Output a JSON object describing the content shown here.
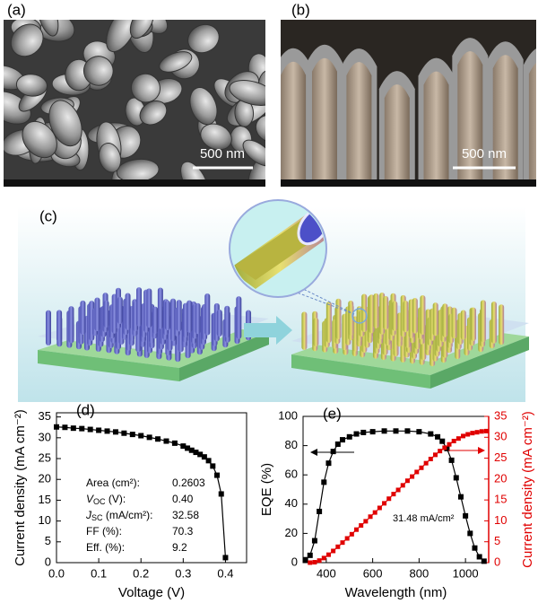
{
  "panels": [
    {
      "label": "(a)",
      "scale_bar": "500 nm"
    },
    {
      "label": "(b)",
      "scale_bar": "500 nm"
    },
    {
      "label": "(c)"
    }
  ],
  "chart_data": [
    {
      "type": "line",
      "panel_label": "(d)",
      "xlabel": "Voltage (V)",
      "ylabel": "Current density (mA cm⁻²)",
      "xlim": [
        0,
        0.45
      ],
      "xticks": [
        {
          "value": 0,
          "label": "0.0"
        },
        0.1,
        0.2,
        0.3,
        0.4
      ],
      "ylim": [
        0,
        36
      ],
      "yticks": [
        0,
        5,
        10,
        15,
        20,
        25,
        30,
        35
      ],
      "series": [
        {
          "color": "#000000",
          "marker": "square",
          "x": [
            0,
            0.02,
            0.04,
            0.06,
            0.08,
            0.1,
            0.12,
            0.14,
            0.16,
            0.18,
            0.2,
            0.22,
            0.24,
            0.26,
            0.28,
            0.3,
            0.31,
            0.32,
            0.33,
            0.34,
            0.35,
            0.36,
            0.37,
            0.38,
            0.39,
            0.4
          ],
          "values": [
            32.6,
            32.5,
            32.3,
            32.2,
            32.0,
            31.8,
            31.6,
            31.4,
            31.1,
            30.8,
            30.5,
            30.1,
            29.7,
            29.2,
            28.7,
            28.0,
            27.5,
            27.0,
            26.5,
            26.0,
            25.4,
            24.5,
            23.2,
            21.0,
            16.5,
            1.2
          ]
        }
      ],
      "table": [
        {
          "label": "Area (cm²):",
          "value": "0.2603"
        },
        {
          "symbol": "V",
          "subscript": "OC",
          "label": " (V):",
          "value": "0.40"
        },
        {
          "symbol": "J",
          "subscript": "SC",
          "label": " (mA/cm²):",
          "value": "32.58"
        },
        {
          "label": "FF (%):",
          "value": "70.3"
        },
        {
          "label": "Eff. (%):",
          "value": "9.2"
        }
      ]
    },
    {
      "type": "line",
      "panel_label": "(e)",
      "xlabel": "Wavelength (nm)",
      "ylabel": "EQE (%)",
      "y2label": "Current density (mA cm⁻²)",
      "annotation": "31.48 mA/cm²",
      "xlim": [
        300,
        1100
      ],
      "xticks": [
        400,
        600,
        800,
        1000
      ],
      "ylim": [
        0,
        100
      ],
      "yticks": [
        0,
        20,
        40,
        60,
        80,
        100
      ],
      "y2lim": [
        0,
        35
      ],
      "y2ticks": [
        0,
        5,
        10,
        15,
        20,
        25,
        30,
        35
      ],
      "y2color": "#e00000",
      "series": [
        {
          "color": "#000000",
          "marker": "square",
          "x": [
            310,
            330,
            350,
            370,
            390,
            410,
            430,
            450,
            470,
            500,
            530,
            560,
            600,
            650,
            700,
            750,
            800,
            850,
            880,
            900,
            920,
            940,
            960,
            980,
            1000,
            1020,
            1040,
            1060,
            1080
          ],
          "values": [
            2,
            5,
            15,
            35,
            55,
            68,
            76,
            81,
            84,
            86,
            88,
            89,
            89.5,
            90,
            90,
            90,
            89.5,
            88,
            86,
            83,
            78,
            70,
            58,
            45,
            32,
            20,
            10,
            4,
            1
          ]
        },
        {
          "color": "#e00000",
          "marker": "square",
          "axis": "y2",
          "x": [
            330,
            350,
            370,
            390,
            410,
            430,
            450,
            470,
            490,
            510,
            530,
            550,
            570,
            590,
            610,
            630,
            650,
            670,
            690,
            710,
            730,
            750,
            770,
            790,
            810,
            830,
            850,
            870,
            890,
            910,
            930,
            950,
            970,
            990,
            1010,
            1030,
            1050,
            1070,
            1090
          ],
          "values": [
            0,
            0.1,
            0.5,
            1.1,
            1.9,
            2.8,
            3.8,
            4.8,
            5.8,
            6.8,
            7.9,
            8.9,
            9.9,
            11.0,
            12.0,
            13.1,
            14.2,
            15.3,
            16.4,
            17.4,
            18.5,
            19.6,
            20.6,
            21.7,
            22.7,
            23.8,
            24.8,
            25.8,
            26.7,
            27.5,
            28.3,
            29.1,
            29.7,
            30.3,
            30.7,
            31.0,
            31.2,
            31.4,
            31.48
          ]
        }
      ]
    }
  ]
}
